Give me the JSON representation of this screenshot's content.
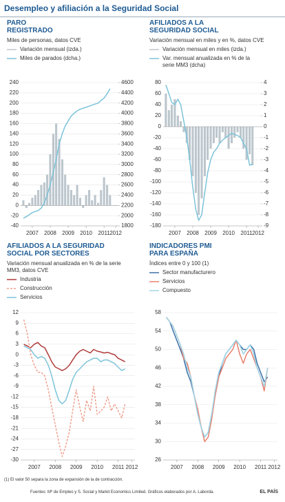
{
  "title": "Desempleo y afiliación a la Seguridad Social",
  "chart_data": [
    {
      "type": "combo",
      "title": [
        "PARO",
        "REGISTRADO"
      ],
      "subtitle": "Miles de personas, datos CVE",
      "x": [
        2007,
        2007.17,
        2007.33,
        2007.5,
        2007.67,
        2007.83,
        2008,
        2008.17,
        2008.33,
        2008.5,
        2008.67,
        2008.83,
        2009,
        2009.17,
        2009.33,
        2009.5,
        2009.67,
        2009.83,
        2010,
        2010.17,
        2010.33,
        2010.5,
        2010.67,
        2010.83,
        2011,
        2011.17,
        2011.33,
        2011.5,
        2011.67,
        2011.83
      ],
      "xlim": [
        2006.85,
        2012.3
      ],
      "xticks": [
        {
          "value": 2007.5,
          "label": "2007"
        },
        {
          "value": 2008.5,
          "label": "2008"
        },
        {
          "value": 2009.5,
          "label": "2009"
        },
        {
          "value": 2010.5,
          "label": "2010"
        },
        {
          "value": 2011.5,
          "label": "2011"
        },
        {
          "value": 2012.15,
          "label": "2012"
        }
      ],
      "ylim": [
        -40,
        240
      ],
      "yticks": [
        -40,
        -20,
        0,
        20,
        40,
        60,
        80,
        100,
        120,
        140,
        160,
        180,
        200,
        220,
        240
      ],
      "y2lim": [
        1800,
        4600
      ],
      "y2ticks": [
        1800,
        2000,
        2200,
        2400,
        2600,
        2800,
        3000,
        3200,
        3400,
        3600,
        3800,
        4000,
        4200,
        4400,
        4600
      ],
      "grid": true,
      "series": [
        {
          "name": "Variación mensual (izda.)",
          "type": "bar",
          "color": "#bcc6cd",
          "values": [
            10,
            -5,
            5,
            15,
            20,
            30,
            40,
            45,
            60,
            100,
            140,
            160,
            130,
            90,
            60,
            40,
            30,
            20,
            40,
            15,
            -5,
            20,
            30,
            10,
            20,
            5,
            30,
            55,
            40,
            20
          ]
        },
        {
          "name": "Miles de parados (dcha.)",
          "type": "line",
          "axis": "y2",
          "color": "#7cc3d9",
          "values": [
            1950,
            1980,
            2020,
            2060,
            2080,
            2100,
            2150,
            2250,
            2400,
            2600,
            2850,
            3100,
            3400,
            3600,
            3750,
            3850,
            3950,
            4000,
            4050,
            4080,
            4100,
            4120,
            4140,
            4160,
            4180,
            4200,
            4250,
            4300,
            4380,
            4480
          ]
        }
      ]
    },
    {
      "type": "combo",
      "title": [
        "AFILIADOS A LA",
        "SEGURIDAD SOCIAL"
      ],
      "subtitle": "Variación mensual en miles y en %, datos CVE",
      "x": [
        2007,
        2007.17,
        2007.33,
        2007.5,
        2007.67,
        2007.83,
        2008,
        2008.17,
        2008.33,
        2008.5,
        2008.67,
        2008.83,
        2009,
        2009.17,
        2009.33,
        2009.5,
        2009.67,
        2009.83,
        2010,
        2010.17,
        2010.33,
        2010.5,
        2010.67,
        2010.83,
        2011,
        2011.17,
        2011.33,
        2011.5,
        2011.67,
        2011.83
      ],
      "xlim": [
        2006.85,
        2012.3
      ],
      "xticks": [
        {
          "value": 2007.5,
          "label": "2007"
        },
        {
          "value": 2008.5,
          "label": "2008"
        },
        {
          "value": 2009.5,
          "label": "2009"
        },
        {
          "value": 2010.5,
          "label": "2010"
        },
        {
          "value": 2011.5,
          "label": "2011"
        },
        {
          "value": 2012.15,
          "label": "2012"
        }
      ],
      "ylim": [
        -180,
        80
      ],
      "yticks": [
        -180,
        -160,
        -140,
        -120,
        -100,
        -80,
        -60,
        -40,
        -20,
        0,
        20,
        40,
        60,
        80
      ],
      "y2lim": [
        -9,
        4
      ],
      "y2ticks": [
        -9,
        -8,
        -7,
        -6,
        -5,
        -4,
        -3,
        -2,
        -1,
        0,
        1,
        2,
        3,
        4
      ],
      "grid": true,
      "series": [
        {
          "name": "Variación mensual en miles (izda.)",
          "type": "bar",
          "color": "#bcc6cd",
          "values": [
            60,
            30,
            40,
            50,
            20,
            10,
            -10,
            -30,
            -60,
            -90,
            -120,
            -160,
            -130,
            -90,
            -60,
            -40,
            -30,
            -20,
            -30,
            -10,
            -20,
            -40,
            -30,
            -20,
            -10,
            -20,
            -40,
            -60,
            -50,
            -70
          ]
        },
        {
          "name": "Var. mensual anualizada en % de la serie MM3 (dcha)",
          "type": "line",
          "axis": "y2",
          "color": "#7cc3d9",
          "values": [
            3.8,
            3,
            2.2,
            2,
            2.5,
            2,
            0.5,
            -1,
            -3,
            -5.5,
            -7.5,
            -8.5,
            -8,
            -6,
            -4.2,
            -3,
            -2.3,
            -2,
            -1.5,
            -1.2,
            -1,
            -0.8,
            -0.6,
            -0.7,
            -0.8,
            -1,
            -1.5,
            -2,
            -3.5,
            -3.4
          ]
        }
      ]
    },
    {
      "type": "line",
      "title": [
        "AFILIADOS A LA SEGURIDAD",
        "SOCIAL POR SECTORES"
      ],
      "subtitle": "Variación mensual anualizada en % de la serie MM3, datos CVE",
      "x": [
        2007,
        2007.17,
        2007.33,
        2007.5,
        2007.67,
        2007.83,
        2008,
        2008.17,
        2008.33,
        2008.5,
        2008.67,
        2008.83,
        2009,
        2009.17,
        2009.33,
        2009.5,
        2009.67,
        2009.83,
        2010,
        2010.17,
        2010.33,
        2010.5,
        2010.67,
        2010.83,
        2011,
        2011.17,
        2011.33,
        2011.5,
        2011.67,
        2011.83
      ],
      "xlim": [
        2006.85,
        2012.3
      ],
      "xticks": [
        {
          "value": 2007.5,
          "label": "2007"
        },
        {
          "value": 2008.5,
          "label": "2008"
        },
        {
          "value": 2009.5,
          "label": "2009"
        },
        {
          "value": 2010.5,
          "label": "2010"
        },
        {
          "value": 2011.5,
          "label": "2011"
        },
        {
          "value": 2012.15,
          "label": "2012"
        }
      ],
      "ylim": [
        -30,
        12
      ],
      "yticks": [
        -30,
        -27,
        -24,
        -21,
        -18,
        -15,
        -12,
        -9,
        -6,
        -3,
        0,
        3,
        6,
        9,
        12
      ],
      "grid": true,
      "series": [
        {
          "name": "Industria",
          "type": "line",
          "color": "#b03a3a",
          "values": [
            3,
            2.5,
            2,
            3,
            3.5,
            2.5,
            2,
            0,
            -2,
            -3.5,
            -4,
            -4.5,
            -4,
            -3,
            -1.5,
            0,
            1,
            1.5,
            1,
            0.5,
            1.5,
            1,
            0.8,
            0.5,
            0.7,
            0.3,
            0,
            -1,
            -1.5,
            -2
          ]
        },
        {
          "name": "Construcción",
          "type": "line",
          "dash": true,
          "color": "#f0a08f",
          "values": [
            10,
            6,
            0,
            -3,
            -5,
            -5,
            -6,
            -10,
            -15,
            -20,
            -25,
            -29,
            -26,
            -22,
            -16,
            -10,
            -15,
            -19,
            -13,
            -16,
            -9,
            -17,
            -16,
            -15,
            -12,
            -16,
            -14,
            -16,
            -18,
            -14
          ]
        },
        {
          "name": "Servicios",
          "type": "line",
          "color": "#7cc3d9",
          "values": [
            2.5,
            2,
            1.5,
            0,
            -1,
            -0.5,
            -1,
            -3,
            -6,
            -10,
            -13,
            -14,
            -13,
            -10,
            -7,
            -5,
            -4,
            -3,
            -2,
            -1.5,
            -1,
            -1,
            -2,
            -1.5,
            -1.5,
            -2,
            -2.5,
            -3.5,
            -4.5,
            -4
          ]
        }
      ]
    },
    {
      "type": "line",
      "title": [
        "INDICADORES PMI",
        "PARA ESPAÑA"
      ],
      "subtitle": "Índices entre 0 y 100 (1)",
      "x": [
        2007,
        2007.17,
        2007.33,
        2007.5,
        2007.67,
        2007.83,
        2008,
        2008.17,
        2008.33,
        2008.5,
        2008.67,
        2008.83,
        2009,
        2009.17,
        2009.33,
        2009.5,
        2009.67,
        2009.83,
        2010,
        2010.17,
        2010.33,
        2010.5,
        2010.67,
        2010.83,
        2011,
        2011.17,
        2011.33,
        2011.5,
        2011.67,
        2011.83
      ],
      "xlim": [
        2006.85,
        2012.3
      ],
      "xticks": [
        {
          "value": 2007.5,
          "label": "2007"
        },
        {
          "value": 2008.5,
          "label": "2008"
        },
        {
          "value": 2009.5,
          "label": "2009"
        },
        {
          "value": 2010.5,
          "label": "2010"
        },
        {
          "value": 2011.5,
          "label": "2011"
        },
        {
          "value": 2012.15,
          "label": "2012"
        }
      ],
      "ylim": [
        26,
        58
      ],
      "yticks": [
        26,
        30,
        34,
        38,
        42,
        46,
        50,
        54,
        58
      ],
      "grid": true,
      "series": [
        {
          "name": "Sector manufacturero",
          "type": "line",
          "color": "#3c6fa8",
          "values": [
            57,
            56,
            54,
            52,
            50,
            48,
            45,
            43,
            40,
            36,
            33,
            31,
            32,
            36,
            40,
            44,
            47,
            49,
            50,
            51,
            52,
            51,
            50,
            50,
            51,
            50,
            47,
            45,
            43,
            44
          ]
        },
        {
          "name": "Servicios",
          "type": "line",
          "color": "#e8806e",
          "values": [
            57,
            56,
            55,
            53,
            51,
            48,
            47,
            44,
            40,
            37,
            33,
            30,
            31,
            35,
            40,
            44,
            46,
            48,
            49,
            50,
            52,
            49,
            47,
            49,
            50,
            48,
            46,
            44,
            41,
            46
          ]
        },
        {
          "name": "Compuesto",
          "type": "line",
          "color": "#9fd6e6",
          "values": [
            57,
            56,
            55,
            53,
            51,
            49,
            46,
            44,
            40,
            36,
            33,
            31,
            32,
            36,
            41,
            45,
            47,
            49,
            50,
            51,
            52,
            51,
            49,
            50,
            51,
            49,
            46,
            44,
            42,
            46
          ]
        }
      ]
    }
  ],
  "footnote": "(1) El valor 50 separa la zona de expansión de la de contracción.",
  "source": "Fuentes: Mº de Empleo y S. Social y Markit Economics Limited.  Gráficos elaborados por A. Laborda.",
  "brand": "EL PAÍS"
}
